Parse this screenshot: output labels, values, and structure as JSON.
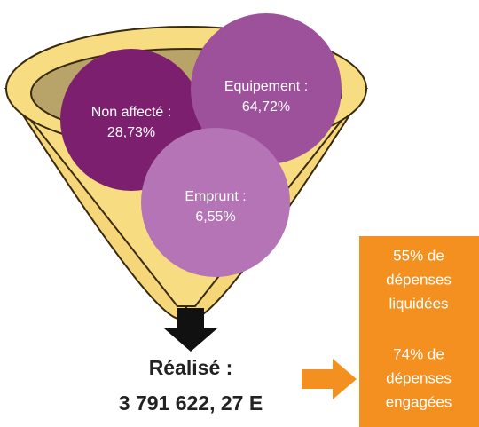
{
  "bubbles": [
    {
      "label": "Non affecté :",
      "value": "28,73%"
    },
    {
      "label": "Equipement :",
      "value": "64,72%"
    },
    {
      "label": "Emprunt :",
      "value": "6,55%"
    }
  ],
  "result": {
    "label": "Réalisé :",
    "value": "3 791 622, 27 E"
  },
  "box": {
    "liquidated": [
      "55% de",
      "dépenses",
      "liquidées"
    ],
    "committed": [
      "74% de",
      "dépenses",
      "engagées"
    ]
  }
}
